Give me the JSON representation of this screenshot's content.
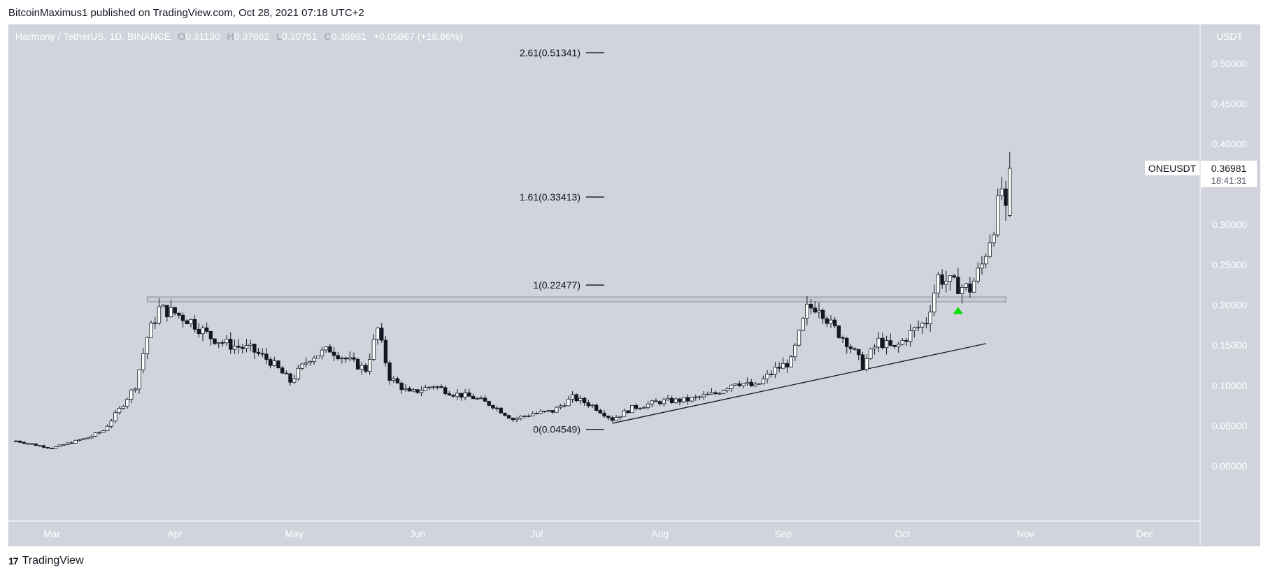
{
  "header": {
    "publisher_line": "BitcoinMaximus1 published on TradingView.com, Oct 28, 2021 07:18 UTC+2"
  },
  "legend": {
    "symbol_desc": "Harmony / TetherUS, 1D, BINANCE",
    "open_key": "O",
    "open": "0.31130",
    "high_key": "H",
    "high": "0.37662",
    "low_key": "L",
    "low": "0.30751",
    "close_key": "C",
    "close": "0.36981",
    "change": "+0.05867 (+18.86%)"
  },
  "price_axis": {
    "currency": "USDT",
    "labels": [
      "0.50000",
      "0.45000",
      "0.40000",
      "0.30000",
      "0.25000",
      "0.20000",
      "0.15000",
      "0.10000",
      "0.05000",
      "0.00000"
    ]
  },
  "price_tag": {
    "symbol": "ONEUSDT",
    "price": "0.36981",
    "countdown": "18:41:31"
  },
  "footer": {
    "brand": "TradingView",
    "logo_mark": "17"
  },
  "colors": {
    "background": "#d1d4dc",
    "candle_up": "#ffffff",
    "candle_down": "#131722",
    "wick": "#131722",
    "axis_text": "#ffffff",
    "fib_text": "#131722",
    "support_zone": "#c9ccd3",
    "arrow": "#00e000"
  },
  "chart_data": {
    "type": "candlestick",
    "x_tick_labels": [
      "Mar",
      "Apr",
      "May",
      "Jun",
      "Jul",
      "Aug",
      "Sep",
      "Oct",
      "Nov",
      "Dec"
    ],
    "y_axis_labels": [
      0.5,
      0.45,
      0.4,
      0.3,
      0.25,
      0.2,
      0.15,
      0.1,
      0.05,
      0.0
    ],
    "fib_levels": [
      {
        "label": "2.61(0.51341)",
        "value": 0.51341
      },
      {
        "label": "1.61(0.33413)",
        "value": 0.33413
      },
      {
        "label": "1(0.22477)",
        "value": 0.22477
      },
      {
        "label": "0(0.04549)",
        "value": 0.04549
      }
    ],
    "support_zone": {
      "from": "2021-03-25",
      "to": "2021-10-27",
      "low": 0.204,
      "high": 0.21
    },
    "trendline": {
      "start": [
        "2021-07-20",
        0.053
      ],
      "end": [
        "2021-10-22",
        0.152
      ]
    },
    "arrow": {
      "date": "2021-10-15",
      "price": 0.194
    },
    "candles_sampled": [
      [
        "2021-02-20",
        0.031
      ],
      [
        "2021-02-25",
        0.026
      ],
      [
        "2021-03-01",
        0.022
      ],
      [
        "2021-03-05",
        0.028
      ],
      [
        "2021-03-10",
        0.035
      ],
      [
        "2021-03-14",
        0.044
      ],
      [
        "2021-03-18",
        0.07
      ],
      [
        "2021-03-22",
        0.1
      ],
      [
        "2021-03-25",
        0.16
      ],
      [
        "2021-03-28",
        0.195
      ],
      [
        "2021-04-01",
        0.19
      ],
      [
        "2021-04-05",
        0.18
      ],
      [
        "2021-04-10",
        0.16
      ],
      [
        "2021-04-15",
        0.15
      ],
      [
        "2021-04-20",
        0.145
      ],
      [
        "2021-04-25",
        0.13
      ],
      [
        "2021-04-30",
        0.105
      ],
      [
        "2021-05-05",
        0.135
      ],
      [
        "2021-05-10",
        0.145
      ],
      [
        "2021-05-15",
        0.13
      ],
      [
        "2021-05-19",
        0.12
      ],
      [
        "2021-05-22",
        0.17
      ],
      [
        "2021-05-25",
        0.11
      ],
      [
        "2021-05-30",
        0.09
      ],
      [
        "2021-06-05",
        0.1
      ],
      [
        "2021-06-10",
        0.09
      ],
      [
        "2021-06-15",
        0.085
      ],
      [
        "2021-06-20",
        0.075
      ],
      [
        "2021-06-25",
        0.058
      ],
      [
        "2021-06-30",
        0.065
      ],
      [
        "2021-07-05",
        0.068
      ],
      [
        "2021-07-10",
        0.085
      ],
      [
        "2021-07-15",
        0.075
      ],
      [
        "2021-07-20",
        0.058
      ],
      [
        "2021-07-25",
        0.072
      ],
      [
        "2021-08-01",
        0.08
      ],
      [
        "2021-08-08",
        0.082
      ],
      [
        "2021-08-15",
        0.09
      ],
      [
        "2021-08-20",
        0.105
      ],
      [
        "2021-08-25",
        0.098
      ],
      [
        "2021-08-30",
        0.12
      ],
      [
        "2021-09-03",
        0.13
      ],
      [
        "2021-09-07",
        0.195
      ],
      [
        "2021-09-10",
        0.2
      ],
      [
        "2021-09-13",
        0.175
      ],
      [
        "2021-09-17",
        0.155
      ],
      [
        "2021-09-21",
        0.125
      ],
      [
        "2021-09-25",
        0.155
      ],
      [
        "2021-09-29",
        0.145
      ],
      [
        "2021-10-03",
        0.165
      ],
      [
        "2021-10-07",
        0.18
      ],
      [
        "2021-10-10",
        0.235
      ],
      [
        "2021-10-14",
        0.225
      ],
      [
        "2021-10-18",
        0.22
      ],
      [
        "2021-10-21",
        0.25
      ],
      [
        "2021-10-24",
        0.3
      ],
      [
        "2021-10-26",
        0.345
      ],
      [
        "2021-10-27",
        0.31
      ],
      [
        "2021-10-28",
        0.36981
      ]
    ]
  }
}
